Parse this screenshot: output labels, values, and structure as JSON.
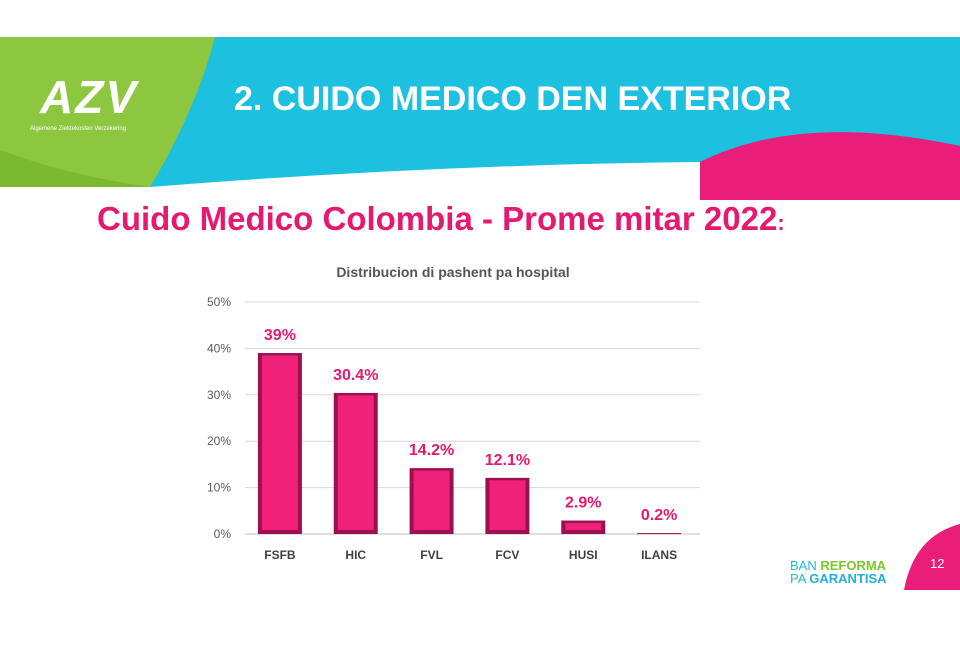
{
  "header": {
    "logo": "AZV",
    "logo_subtitle": "Algemene Ziektekosten Verzekering",
    "title": "2. CUIDO MEDICO DEN EXTERIOR"
  },
  "subtitle": {
    "text": "Cuido Medico Colombia - Prome mitar 2022",
    "colon": ":"
  },
  "chart_data": {
    "type": "bar",
    "title": "Distribucion di pashent pa hospital",
    "categories": [
      "FSFB",
      "HIC",
      "FVL",
      "FCV",
      "HUSI",
      "ILANS"
    ],
    "values": [
      39,
      30.4,
      14.2,
      12.1,
      2.9,
      0.2
    ],
    "data_labels": [
      "39%",
      "30.4%",
      "14.2%",
      "12.1%",
      "2.9%",
      "0.2%"
    ],
    "yticks": [
      "0%",
      "10%",
      "20%",
      "30%",
      "40%",
      "50%"
    ],
    "ylim": [
      0,
      50
    ],
    "xlabel": "",
    "ylabel": "",
    "grid": true,
    "bar_color": "#f0217a",
    "label_color": "#e4196f"
  },
  "footer": {
    "brand_line1_a": "BAN ",
    "brand_line1_b": "REFORMA",
    "brand_line2_a": "PA ",
    "brand_line2_b": "GARANTISA",
    "page_number": "12"
  },
  "colors": {
    "green": "#8dc63f",
    "cyan": "#1ec0e0",
    "magenta": "#e4196f"
  }
}
